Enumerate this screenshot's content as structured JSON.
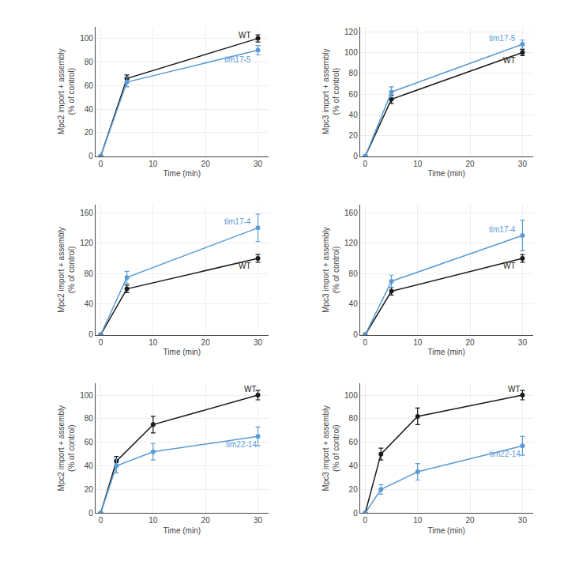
{
  "chart_data": [
    {
      "type": "line",
      "x": [
        0,
        5,
        30
      ],
      "xlabel": "Time (min)",
      "ylabel": "Mpc2 import + assembly\n(% of control)",
      "xlim": [
        -1,
        32
      ],
      "xticks": [
        0,
        10,
        20,
        30
      ],
      "ylim": [
        0,
        110
      ],
      "yticks": [
        0,
        20,
        40,
        60,
        80,
        100
      ],
      "series": [
        {
          "name": "WT",
          "color": "#1a1a1a",
          "marker": "circle",
          "values": [
            0,
            66,
            100
          ],
          "errors": [
            0,
            3,
            3
          ]
        },
        {
          "name": "tim17-5",
          "color": "#5b9bd5",
          "marker": "circle",
          "values": [
            0,
            63,
            90
          ],
          "errors": [
            0,
            4,
            4
          ]
        }
      ],
      "annotations": [
        {
          "text": "WT",
          "x": 29,
          "y": 98,
          "color": "#1a1a1a"
        },
        {
          "text": "tim17-5",
          "x": 29,
          "y": 87,
          "color": "#5b9bd5"
        }
      ]
    },
    {
      "type": "line",
      "x": [
        0,
        5,
        30
      ],
      "xlabel": "Time (min)",
      "ylabel": "Mpc3 import + assembly\n(% of control)",
      "xlim": [
        -1,
        32
      ],
      "xticks": [
        0,
        10,
        20,
        30
      ],
      "ylim": [
        0,
        125
      ],
      "yticks": [
        0,
        20,
        40,
        60,
        80,
        100,
        120
      ],
      "series": [
        {
          "name": "WT",
          "color": "#1a1a1a",
          "marker": "circle",
          "values": [
            0,
            55,
            100
          ],
          "errors": [
            0,
            4,
            3
          ]
        },
        {
          "name": "tim17-5",
          "color": "#5b9bd5",
          "marker": "circle",
          "values": [
            0,
            62,
            108
          ],
          "errors": [
            0,
            5,
            4
          ]
        }
      ],
      "annotations": [
        {
          "text": "tim17-5",
          "x": 29,
          "y": 108,
          "color": "#5b9bd5"
        },
        {
          "text": "WT",
          "x": 29,
          "y": 98,
          "color": "#1a1a1a"
        }
      ]
    },
    {
      "type": "line",
      "x": [
        0,
        5,
        30
      ],
      "xlabel": "Time (min)",
      "ylabel": "Mpc2 import + assembly\n(% of control)",
      "xlim": [
        -1,
        32
      ],
      "xticks": [
        0,
        10,
        20,
        30
      ],
      "ylim": [
        0,
        170
      ],
      "yticks": [
        0,
        40,
        80,
        120,
        160
      ],
      "series": [
        {
          "name": "WT",
          "color": "#1a1a1a",
          "marker": "circle",
          "values": [
            0,
            60,
            100
          ],
          "errors": [
            0,
            5,
            5
          ]
        },
        {
          "name": "tim17-4",
          "color": "#5b9bd5",
          "marker": "circle",
          "values": [
            0,
            75,
            140
          ],
          "errors": [
            0,
            8,
            18
          ]
        }
      ],
      "annotations": [
        {
          "text": "tim17-4",
          "x": 29,
          "y": 140,
          "color": "#5b9bd5"
        },
        {
          "text": "WT",
          "x": 29,
          "y": 98,
          "color": "#1a1a1a"
        }
      ]
    },
    {
      "type": "line",
      "x": [
        0,
        5,
        30
      ],
      "xlabel": "Time (min)",
      "ylabel": "Mpc3 import + assembly\n(% of control)",
      "xlim": [
        -1,
        32
      ],
      "xticks": [
        0,
        10,
        20,
        30
      ],
      "ylim": [
        0,
        170
      ],
      "yticks": [
        0,
        40,
        80,
        120,
        160
      ],
      "series": [
        {
          "name": "WT",
          "color": "#1a1a1a",
          "marker": "circle",
          "values": [
            0,
            57,
            100
          ],
          "errors": [
            0,
            5,
            5
          ]
        },
        {
          "name": "tim17-4",
          "color": "#5b9bd5",
          "marker": "circle",
          "values": [
            0,
            70,
            130
          ],
          "errors": [
            0,
            8,
            20
          ]
        }
      ],
      "annotations": [
        {
          "text": "tim17-4",
          "x": 29,
          "y": 130,
          "color": "#5b9bd5"
        },
        {
          "text": "WT",
          "x": 29,
          "y": 98,
          "color": "#1a1a1a"
        }
      ]
    },
    {
      "type": "line",
      "x": [
        0,
        3,
        10,
        30
      ],
      "xlabel": "Time (min)",
      "ylabel": "Mpc2 import + assembly\n(% of control)",
      "xlim": [
        -1,
        32
      ],
      "xticks": [
        0,
        10,
        20,
        30
      ],
      "ylim": [
        0,
        110
      ],
      "yticks": [
        0,
        20,
        40,
        60,
        80,
        100
      ],
      "series": [
        {
          "name": "WT",
          "color": "#1a1a1a",
          "marker": "circle",
          "values": [
            0,
            44,
            75,
            100
          ],
          "errors": [
            0,
            4,
            7,
            4
          ]
        },
        {
          "name": "tim22-14",
          "color": "#5b9bd5",
          "marker": "circle",
          "values": [
            0,
            40,
            52,
            65
          ],
          "errors": [
            0,
            6,
            7,
            8
          ]
        }
      ],
      "annotations": [
        {
          "text": "WT",
          "x": 30,
          "y": 100,
          "color": "#1a1a1a"
        },
        {
          "text": "tim22-14",
          "x": 30,
          "y": 63,
          "color": "#5b9bd5"
        }
      ]
    },
    {
      "type": "line",
      "x": [
        0,
        3,
        10,
        30
      ],
      "xlabel": "Time (min)",
      "ylabel": "Mpc3 import + assembly\n(% of control)",
      "xlim": [
        -1,
        32
      ],
      "xticks": [
        0,
        10,
        20,
        30
      ],
      "ylim": [
        0,
        110
      ],
      "yticks": [
        0,
        20,
        40,
        60,
        80,
        100
      ],
      "series": [
        {
          "name": "WT",
          "color": "#1a1a1a",
          "marker": "circle",
          "values": [
            0,
            50,
            82,
            100
          ],
          "errors": [
            0,
            5,
            7,
            4
          ]
        },
        {
          "name": "tim22-14",
          "color": "#5b9bd5",
          "marker": "circle",
          "values": [
            0,
            20,
            35,
            57
          ],
          "errors": [
            0,
            4,
            7,
            8
          ]
        }
      ],
      "annotations": [
        {
          "text": "WT",
          "x": 30,
          "y": 100,
          "color": "#1a1a1a"
        },
        {
          "text": "tim22-14",
          "x": 30,
          "y": 55,
          "color": "#5b9bd5"
        }
      ]
    }
  ]
}
